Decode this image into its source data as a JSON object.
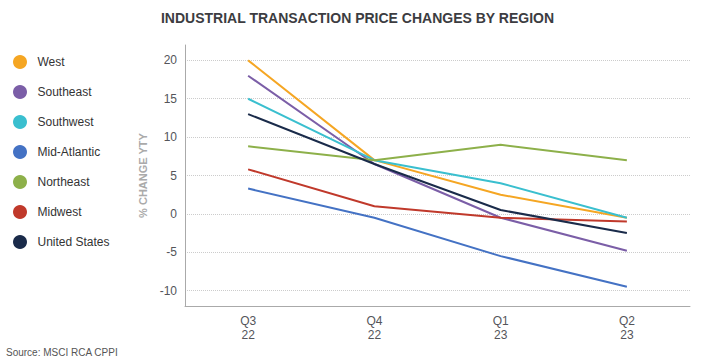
{
  "chart_data": {
    "type": "line",
    "title": "INDUSTRIAL TRANSACTION PRICE CHANGES BY REGION",
    "ylabel": "% CHANGE YTY",
    "annotations": [
      "Source: MSCI RCA CPPI"
    ],
    "categories": [
      "Q3\n22",
      "Q4\n22",
      "Q1\n23",
      "Q2\n23"
    ],
    "ylim": [
      -12,
      22
    ],
    "yticks": [
      -10,
      -5,
      0,
      5,
      10,
      15,
      20
    ],
    "grid": true,
    "legend": "left",
    "series": [
      {
        "name": "West",
        "color": "#F5A623",
        "values": [
          20.0,
          7.0,
          2.5,
          -0.5
        ]
      },
      {
        "name": "Southeast",
        "color": "#7B5EA7",
        "values": [
          18.0,
          6.5,
          -0.5,
          -4.8
        ]
      },
      {
        "name": "Southwest",
        "color": "#3ABFCF",
        "values": [
          15.0,
          7.0,
          4.0,
          -0.5
        ]
      },
      {
        "name": "Mid-Atlantic",
        "color": "#4472C4",
        "values": [
          3.3,
          -0.5,
          -5.5,
          -9.5
        ]
      },
      {
        "name": "Northeast",
        "color": "#8DB04A",
        "values": [
          8.8,
          7.0,
          9.0,
          7.0
        ]
      },
      {
        "name": "Midwest",
        "color": "#C0392B",
        "values": [
          5.8,
          1.0,
          -0.5,
          -1.0
        ]
      },
      {
        "name": "United States",
        "color": "#1A2B4A",
        "values": [
          13.0,
          6.5,
          0.5,
          -2.5
        ]
      }
    ]
  }
}
